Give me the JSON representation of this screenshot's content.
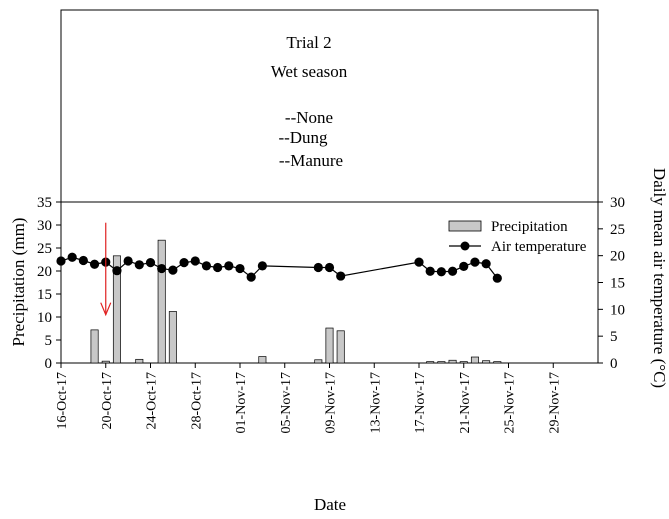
{
  "chart_data": {
    "type": "bar+line",
    "title_lines": [
      "Trial 2",
      "Wet season",
      "",
      "--None",
      "--Dung",
      "--Manure"
    ],
    "xlabel": "Date",
    "ylabel_left": "Precipitation (mm)",
    "ylabel_right": "Daily mean air temperature (°C)",
    "ylim_left": [
      0,
      35
    ],
    "ylim_right": [
      0,
      30
    ],
    "yticks_left": [
      "0",
      "5",
      "10",
      "15",
      "20",
      "25",
      "30",
      "35"
    ],
    "yticks_right": [
      "0",
      "5",
      "10",
      "15",
      "20",
      "25",
      "30"
    ],
    "xlim": [
      "2017-10-16",
      "2017-12-03"
    ],
    "x_tick_labels": [
      "16-Oct-17",
      "20-Oct-17",
      "24-Oct-17",
      "28-Oct-17",
      "01-Nov-17",
      "05-Nov-17",
      "09-Nov-17",
      "13-Nov-17",
      "17-Nov-17",
      "21-Nov-17",
      "25-Nov-17",
      "29-Nov-17"
    ],
    "x_tick_dates": [
      "2017-10-16",
      "2017-10-20",
      "2017-10-24",
      "2017-10-28",
      "2017-11-01",
      "2017-11-05",
      "2017-11-09",
      "2017-11-13",
      "2017-11-17",
      "2017-11-21",
      "2017-11-25",
      "2017-11-29"
    ],
    "legend": {
      "position": "top-right",
      "entries": [
        {
          "label": "Precipitation",
          "marker": "bar"
        },
        {
          "label": "Air temperature",
          "marker": "line-dot"
        }
      ]
    },
    "series": [
      {
        "name": "Precipitation",
        "type": "bar",
        "axis": "left",
        "color": "#c8c8c8",
        "points": [
          {
            "x": "2017-10-19",
            "y": 7.2
          },
          {
            "x": "2017-10-20",
            "y": 0.4
          },
          {
            "x": "2017-10-21",
            "y": 23.3
          },
          {
            "x": "2017-10-23",
            "y": 0.8
          },
          {
            "x": "2017-10-25",
            "y": 26.7
          },
          {
            "x": "2017-10-26",
            "y": 11.2
          },
          {
            "x": "2017-11-03",
            "y": 1.4
          },
          {
            "x": "2017-11-08",
            "y": 0.7
          },
          {
            "x": "2017-11-09",
            "y": 7.6
          },
          {
            "x": "2017-11-10",
            "y": 7.0
          },
          {
            "x": "2017-11-18",
            "y": 0.3
          },
          {
            "x": "2017-11-19",
            "y": 0.3
          },
          {
            "x": "2017-11-20",
            "y": 0.6
          },
          {
            "x": "2017-11-21",
            "y": 0.3
          },
          {
            "x": "2017-11-22",
            "y": 1.3
          },
          {
            "x": "2017-11-23",
            "y": 0.5
          },
          {
            "x": "2017-11-24",
            "y": 0.3
          }
        ]
      },
      {
        "name": "Air temperature",
        "type": "line",
        "axis": "right",
        "color": "#000000",
        "points": [
          {
            "x": "2017-10-16",
            "y": 19.0
          },
          {
            "x": "2017-10-17",
            "y": 19.7
          },
          {
            "x": "2017-10-18",
            "y": 19.1
          },
          {
            "x": "2017-10-19",
            "y": 18.4
          },
          {
            "x": "2017-10-20",
            "y": 18.8
          },
          {
            "x": "2017-10-21",
            "y": 17.2
          },
          {
            "x": "2017-10-22",
            "y": 19.0
          },
          {
            "x": "2017-10-23",
            "y": 18.3
          },
          {
            "x": "2017-10-24",
            "y": 18.7
          },
          {
            "x": "2017-10-25",
            "y": 17.6
          },
          {
            "x": "2017-10-26",
            "y": 17.3
          },
          {
            "x": "2017-10-27",
            "y": 18.7
          },
          {
            "x": "2017-10-28",
            "y": 19.0
          },
          {
            "x": "2017-10-29",
            "y": 18.1
          },
          {
            "x": "2017-10-30",
            "y": 17.8
          },
          {
            "x": "2017-10-31",
            "y": 18.1
          },
          {
            "x": "2017-11-01",
            "y": 17.6
          },
          {
            "x": "2017-11-02",
            "y": 16.0
          },
          {
            "x": "2017-11-03",
            "y": 18.1
          },
          {
            "x": "2017-11-08",
            "y": 17.8
          },
          {
            "x": "2017-11-09",
            "y": 17.8
          },
          {
            "x": "2017-11-10",
            "y": 16.2
          },
          {
            "x": "2017-11-17",
            "y": 18.8
          },
          {
            "x": "2017-11-18",
            "y": 17.1
          },
          {
            "x": "2017-11-19",
            "y": 17.0
          },
          {
            "x": "2017-11-20",
            "y": 17.1
          },
          {
            "x": "2017-11-21",
            "y": 18.0
          },
          {
            "x": "2017-11-22",
            "y": 18.8
          },
          {
            "x": "2017-11-23",
            "y": 18.5
          },
          {
            "x": "2017-11-24",
            "y": 15.8
          }
        ]
      }
    ],
    "annotations": [
      {
        "type": "arrow",
        "color": "#e02020",
        "x": "2017-10-20",
        "from_y": 30.5,
        "to_y": 10.5,
        "axis": "left"
      }
    ]
  }
}
